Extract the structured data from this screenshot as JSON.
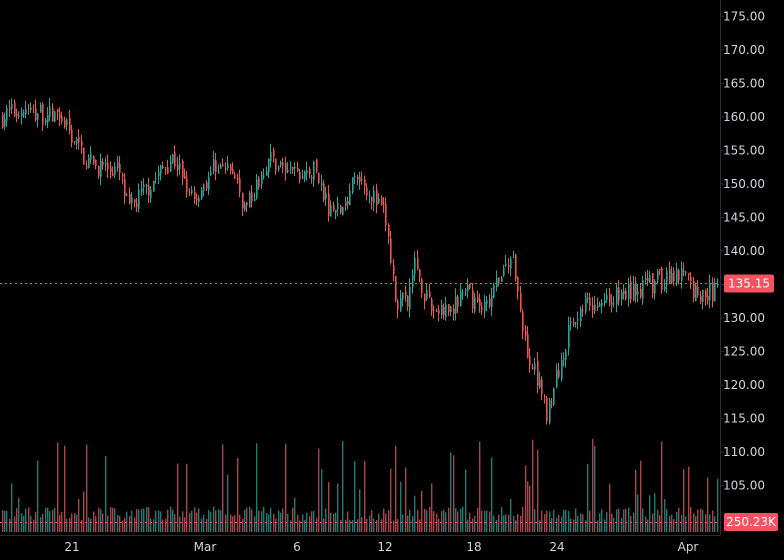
{
  "chart_data": {
    "type": "candlestick",
    "price_axis": {
      "ticks": [
        105,
        110,
        115,
        120,
        125,
        130,
        135,
        140,
        145,
        150,
        155,
        160,
        165,
        170,
        175
      ],
      "tick_labels": [
        "105.00",
        "110.00",
        "115.00",
        "120.00",
        "125.00",
        "130.00",
        "135.00",
        "140.00",
        "145.00",
        "150.00",
        "155.00",
        "160.00",
        "165.00",
        "170.00",
        "175.00"
      ],
      "range": [
        102.5,
        177.5
      ]
    },
    "time_axis": {
      "labels": [
        "21",
        "Mar",
        "6",
        "12",
        "18",
        "24",
        "Apr"
      ]
    },
    "last_price": {
      "value": 135.15,
      "label": "135.15",
      "color": "#f7525f"
    },
    "last_volume": {
      "value": 250230,
      "label": "250.23K",
      "color": "#f7525f"
    },
    "colors": {
      "up": "#26a69a",
      "down": "#ef5350",
      "volume_up": "#1e7a72",
      "volume_down": "#a9444a",
      "axis_text": "#d1d4dc",
      "axis_line": "#2a2e39",
      "background": "#000000"
    },
    "ohlc_anchor_points": [
      [
        0,
        160
      ],
      [
        20,
        161
      ],
      [
        60,
        160
      ],
      [
        88,
        153
      ],
      [
        118,
        152
      ],
      [
        128,
        146
      ],
      [
        150,
        150
      ],
      [
        172,
        154
      ],
      [
        195,
        148
      ],
      [
        215,
        153
      ],
      [
        235,
        151
      ],
      [
        245,
        146
      ],
      [
        268,
        154
      ],
      [
        295,
        151
      ],
      [
        315,
        152
      ],
      [
        330,
        146
      ],
      [
        345,
        146
      ],
      [
        355,
        151
      ],
      [
        365,
        150
      ],
      [
        385,
        145
      ],
      [
        395,
        133
      ],
      [
        405,
        132
      ],
      [
        415,
        138
      ],
      [
        430,
        131
      ],
      [
        450,
        131
      ],
      [
        465,
        134
      ],
      [
        485,
        131
      ],
      [
        500,
        136
      ],
      [
        512,
        139
      ],
      [
        518,
        133
      ],
      [
        528,
        124
      ],
      [
        540,
        120
      ],
      [
        546,
        116
      ],
      [
        558,
        122
      ],
      [
        570,
        129
      ],
      [
        582,
        132
      ],
      [
        600,
        133
      ],
      [
        615,
        133
      ],
      [
        630,
        134
      ],
      [
        650,
        135
      ],
      [
        665,
        136
      ],
      [
        678,
        137
      ],
      [
        690,
        135
      ],
      [
        700,
        133
      ],
      [
        712,
        134
      ],
      [
        718,
        135.15
      ]
    ],
    "volume_axis_max": 160000
  }
}
